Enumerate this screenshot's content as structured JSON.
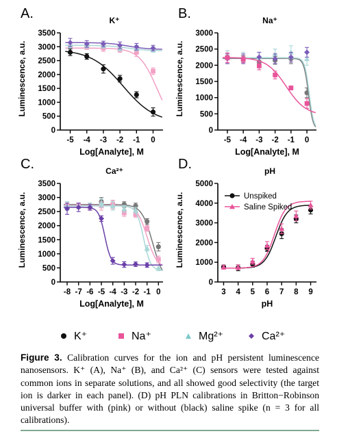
{
  "caption": {
    "figure_label": "Figure 3.",
    "text": "Calibration curves for the ion and pH persistent luminescence nanosensors. K⁺ (A), Na⁺ (B), and Ca²⁺ (C) sensors were tested against common ions in separate solutions, and all showed good selectivity (the target ion is darker in each panel). (D) pH PLN calibrations in Britton−Robinson universal buffer with (pink) or without (black) saline spike (n = 3 for all calibrations)."
  },
  "legend": [
    {
      "label": "K⁺",
      "color": "#111111",
      "marker": "circle"
    },
    {
      "label": "Na⁺",
      "color": "#e8549a",
      "marker": "square"
    },
    {
      "label": "Mg²⁺",
      "color": "#7ec8c8",
      "marker": "triangle"
    },
    {
      "label": "Ca²⁺",
      "color": "#6a3fa8",
      "marker": "diamond"
    }
  ],
  "colors": {
    "K": "#111111",
    "Na": "#e8549a",
    "Mg": "#7ec8c8",
    "Ca": "#6a3fa8",
    "K_light": "#777777",
    "Na_light": "#f2a0c4",
    "Mg_light": "#a9d7d7",
    "Ca_light": "#7b5bb8",
    "pink": "#e8549a"
  },
  "chart_data": [
    {
      "panel": "A.",
      "title": "K⁺",
      "type": "scatter",
      "xlabel": "Log[Analyte], M",
      "ylabel": "Luminescence, a.u.",
      "xlim": [
        -5.6,
        0.6
      ],
      "ylim": [
        0,
        3500
      ],
      "xticks": [
        -5,
        -4,
        -3,
        -2,
        -1,
        0
      ],
      "yticks": [
        0,
        500,
        1000,
        1500,
        2000,
        2500,
        3000,
        3500
      ],
      "series": [
        {
          "name": "K⁺",
          "x": [
            -5,
            -4,
            -3,
            -2,
            -1,
            0
          ],
          "y": [
            2800,
            2650,
            2200,
            1850,
            1270,
            650
          ],
          "err": [
            120,
            100,
            150,
            120,
            110,
            150
          ],
          "curve": {
            "top": 2900,
            "bottom": 250,
            "ec50": -1.8,
            "hill": 0.45
          }
        },
        {
          "name": "Na⁺",
          "x": [
            -5,
            -4,
            -3,
            -2,
            -1,
            0
          ],
          "y": [
            3000,
            3000,
            2950,
            2900,
            2800,
            2120
          ],
          "err": [
            150,
            100,
            120,
            100,
            150,
            120
          ],
          "curve": {
            "top": 2950,
            "bottom": 0,
            "ec50": 0.25,
            "hill": 0.8
          }
        },
        {
          "name": "Mg²⁺",
          "x": [
            -5,
            -4,
            -3,
            -2,
            -1,
            0
          ],
          "y": [
            3050,
            3050,
            3050,
            2950,
            2950,
            2900
          ],
          "err": [
            100,
            100,
            100,
            100,
            100,
            100
          ],
          "curve": {
            "top": 3050,
            "bottom": 2850,
            "ec50": -1.5,
            "hill": 0.7
          }
        },
        {
          "name": "Ca²⁺",
          "x": [
            -5,
            -4,
            -3,
            -2,
            -1,
            0
          ],
          "y": [
            3150,
            3100,
            3100,
            3050,
            3000,
            2950
          ],
          "err": [
            150,
            120,
            100,
            120,
            120,
            100
          ],
          "curve": {
            "top": 3150,
            "bottom": 2900,
            "ec50": -1.5,
            "hill": 0.7
          }
        }
      ]
    },
    {
      "panel": "B.",
      "title": "Na⁺",
      "type": "scatter",
      "xlabel": "Log[Analyte], M",
      "ylabel": "Luminescence, a.u.",
      "xlim": [
        -5.6,
        0.6
      ],
      "ylim": [
        0,
        3000
      ],
      "xticks": [
        -5,
        -4,
        -3,
        -2,
        -1,
        0
      ],
      "yticks": [
        0,
        500,
        1000,
        1500,
        2000,
        2500,
        3000
      ],
      "series": [
        {
          "name": "Na⁺",
          "x": [
            -5,
            -4,
            -3,
            -2,
            -1,
            0
          ],
          "y": [
            2230,
            2180,
            1980,
            1700,
            1300,
            820
          ],
          "err": [
            150,
            100,
            120,
            120,
            60,
            150
          ],
          "curve": {
            "top": 2240,
            "bottom": 450,
            "ec50": -1.3,
            "hill": 0.7
          }
        },
        {
          "name": "K⁺",
          "x": [
            -5,
            -4,
            -3,
            -2,
            -1,
            0
          ],
          "y": [
            2250,
            2200,
            2100,
            2150,
            2200,
            1150
          ],
          "err": [
            200,
            100,
            100,
            120,
            150,
            150
          ],
          "curve": {
            "top": 2210,
            "bottom": 0,
            "ec50": 0.1,
            "hill": 3
          }
        },
        {
          "name": "Mg²⁺",
          "x": [
            -5,
            -4,
            -3,
            -2,
            -1,
            0
          ],
          "y": [
            2250,
            2250,
            2250,
            2350,
            2400,
            2200
          ],
          "err": [
            200,
            150,
            150,
            150,
            200,
            200
          ],
          "curve": {
            "top": 2230,
            "bottom": 0,
            "ec50": 0.15,
            "hill": 3
          }
        },
        {
          "name": "Ca²⁺",
          "x": [
            -5,
            -4,
            -3,
            -2,
            -1,
            0
          ],
          "y": [
            2200,
            2200,
            2250,
            2200,
            2250,
            2400
          ],
          "err": [
            150,
            150,
            150,
            150,
            150,
            150
          ],
          "curve": null
        }
      ]
    },
    {
      "panel": "C.",
      "title": "Ca²⁺",
      "type": "scatter",
      "xlabel": "Log[Analyte], M",
      "ylabel": "Luminescence, a.u.",
      "xlim": [
        -8.6,
        0.4
      ],
      "ylim": [
        0,
        3500
      ],
      "xticks": [
        -8,
        -7,
        -6,
        -5,
        -4,
        -3,
        -2,
        -1,
        0
      ],
      "yticks": [
        0,
        500,
        1000,
        1500,
        2000,
        2500,
        3000,
        3500
      ],
      "series": [
        {
          "name": "Ca²⁺",
          "x": [
            -8,
            -7,
            -6,
            -5,
            -4,
            -3,
            -2,
            -1
          ],
          "y": [
            2600,
            2650,
            2650,
            2250,
            750,
            620,
            630,
            600
          ],
          "err": [
            200,
            150,
            100,
            100,
            120,
            100,
            80,
            80
          ],
          "curve": {
            "top": 2650,
            "bottom": 600,
            "ec50": -4.7,
            "hill": 1.6
          }
        },
        {
          "name": "K⁺",
          "x": [
            -8,
            -7,
            -6,
            -5,
            -4,
            -3,
            -2,
            -1,
            0
          ],
          "y": [
            2700,
            2700,
            2700,
            2850,
            2750,
            2750,
            2700,
            2150,
            1250
          ],
          "err": [
            150,
            100,
            100,
            150,
            150,
            100,
            100,
            100,
            150
          ],
          "curve": {
            "top": 2750,
            "bottom": 0,
            "ec50": -0.5,
            "hill": 0.9
          }
        },
        {
          "name": "Na⁺",
          "x": [
            -8,
            -7,
            -6,
            -5,
            -4,
            -3,
            -2,
            -1,
            0
          ],
          "y": [
            2700,
            2700,
            2650,
            2700,
            2750,
            2450,
            2400,
            1900,
            800
          ],
          "err": [
            150,
            100,
            100,
            150,
            150,
            120,
            100,
            100,
            120
          ],
          "curve": {
            "top": 2720,
            "bottom": 500,
            "ec50": -1.0,
            "hill": 1.0
          }
        },
        {
          "name": "Mg²⁺",
          "x": [
            -8,
            -7,
            -6,
            -5,
            -4,
            -3,
            -2,
            -1,
            0
          ],
          "y": [
            2700,
            2700,
            2700,
            2800,
            2700,
            2600,
            2550,
            1200,
            500
          ],
          "err": [
            150,
            100,
            100,
            150,
            150,
            120,
            100,
            100,
            100
          ],
          "curve": {
            "top": 2700,
            "bottom": 400,
            "ec50": -1.3,
            "hill": 1.4
          }
        }
      ]
    },
    {
      "panel": "D.",
      "title": "pH",
      "type": "line",
      "xlabel": "pH",
      "ylabel": "Luminescence, a.u.",
      "xlim": [
        2.6,
        9.4
      ],
      "ylim": [
        0,
        5000
      ],
      "xticks": [
        3,
        4,
        5,
        6,
        7,
        8,
        9
      ],
      "yticks": [
        0,
        1000,
        2000,
        3000,
        4000,
        5000
      ],
      "legend_position": "top-left",
      "series": [
        {
          "name": "Unspiked",
          "x": [
            3,
            4,
            5,
            6,
            7,
            8,
            9
          ],
          "y": [
            760,
            720,
            900,
            1700,
            2450,
            3200,
            3650
          ],
          "err": [
            100,
            150,
            150,
            150,
            250,
            200,
            200
          ],
          "curve": {
            "top": 3900,
            "bottom": 700,
            "ec50": 6.6,
            "hill": 0.55
          }
        },
        {
          "name": "Saline Spiked",
          "x": [
            3,
            4,
            5,
            6,
            7,
            8,
            9
          ],
          "y": [
            750,
            750,
            1050,
            1850,
            2700,
            3350,
            3900
          ],
          "err": [
            100,
            120,
            150,
            200,
            250,
            250,
            200
          ],
          "curve": {
            "top": 4100,
            "bottom": 700,
            "ec50": 6.5,
            "hill": 0.55
          }
        }
      ]
    }
  ]
}
